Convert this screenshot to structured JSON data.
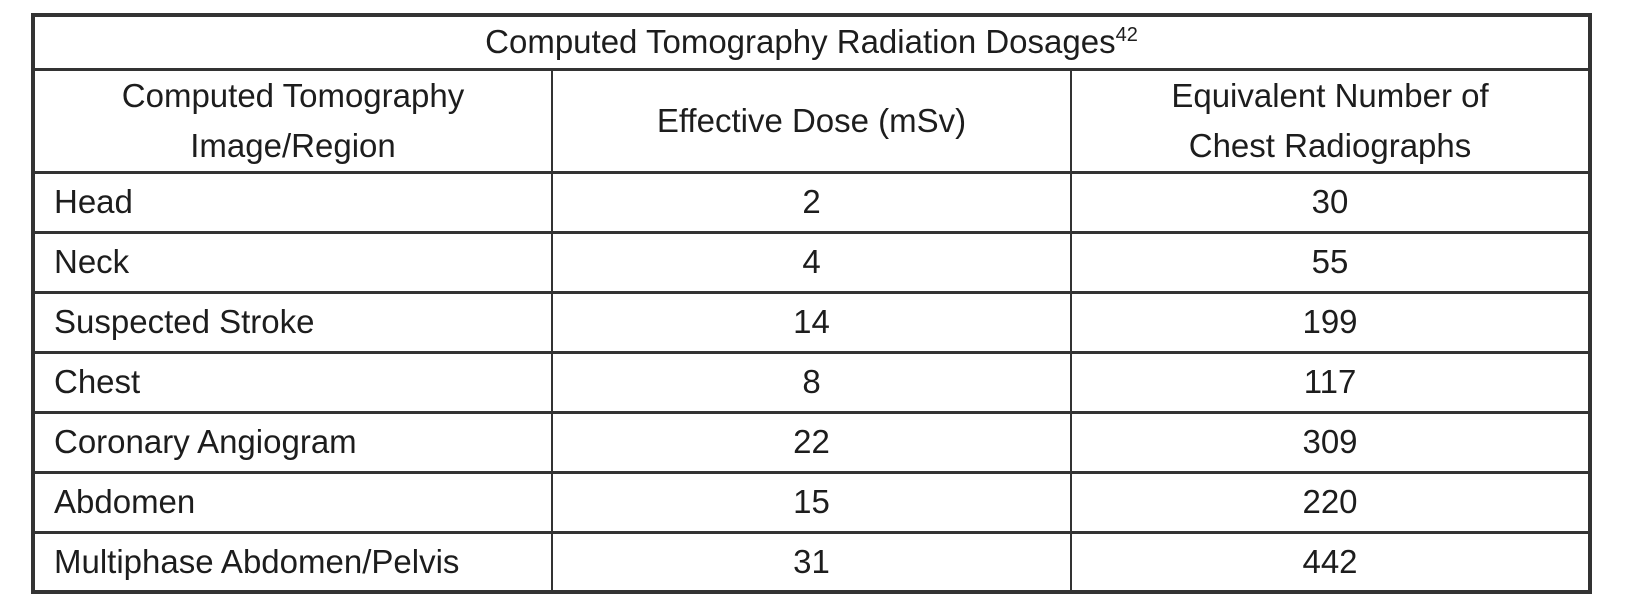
{
  "table": {
    "title": "Computed Tomography Radiation Dosages",
    "title_superscript": "42",
    "columns": [
      "Computed Tomography Image/Region",
      "Effective Dose (mSv)",
      "Equivalent Number of Chest Radiographs"
    ],
    "rows": [
      [
        "Head",
        "2",
        "30"
      ],
      [
        "Neck",
        "4",
        "55"
      ],
      [
        "Suspected Stroke",
        "14",
        "199"
      ],
      [
        "Chest",
        "8",
        "117"
      ],
      [
        "Coronary Angiogram",
        "22",
        "309"
      ],
      [
        "Abdomen",
        "15",
        "220"
      ],
      [
        "Multiphase Abdomen/Pelvis",
        "31",
        "442"
      ]
    ]
  },
  "chart_data": {
    "type": "table",
    "title": "Computed Tomography Radiation Dosages",
    "reference_superscript": "42",
    "columns": [
      "Computed Tomography Image/Region",
      "Effective Dose (mSv)",
      "Equivalent Number of Chest Radiographs"
    ],
    "rows": [
      {
        "image_region": "Head",
        "effective_dose_msv": 2,
        "equivalent_chest_radiographs": 30
      },
      {
        "image_region": "Neck",
        "effective_dose_msv": 4,
        "equivalent_chest_radiographs": 55
      },
      {
        "image_region": "Suspected Stroke",
        "effective_dose_msv": 14,
        "equivalent_chest_radiographs": 199
      },
      {
        "image_region": "Chest",
        "effective_dose_msv": 8,
        "equivalent_chest_radiographs": 117
      },
      {
        "image_region": "Coronary Angiogram",
        "effective_dose_msv": 22,
        "equivalent_chest_radiographs": 309
      },
      {
        "image_region": "Abdomen",
        "effective_dose_msv": 15,
        "equivalent_chest_radiographs": 220
      },
      {
        "image_region": "Multiphase Abdomen/Pelvis",
        "effective_dose_msv": 31,
        "equivalent_chest_radiographs": 442
      }
    ]
  },
  "colors": {
    "background": "#ffffff",
    "border": "#333333",
    "text": "#1d1d1d"
  }
}
